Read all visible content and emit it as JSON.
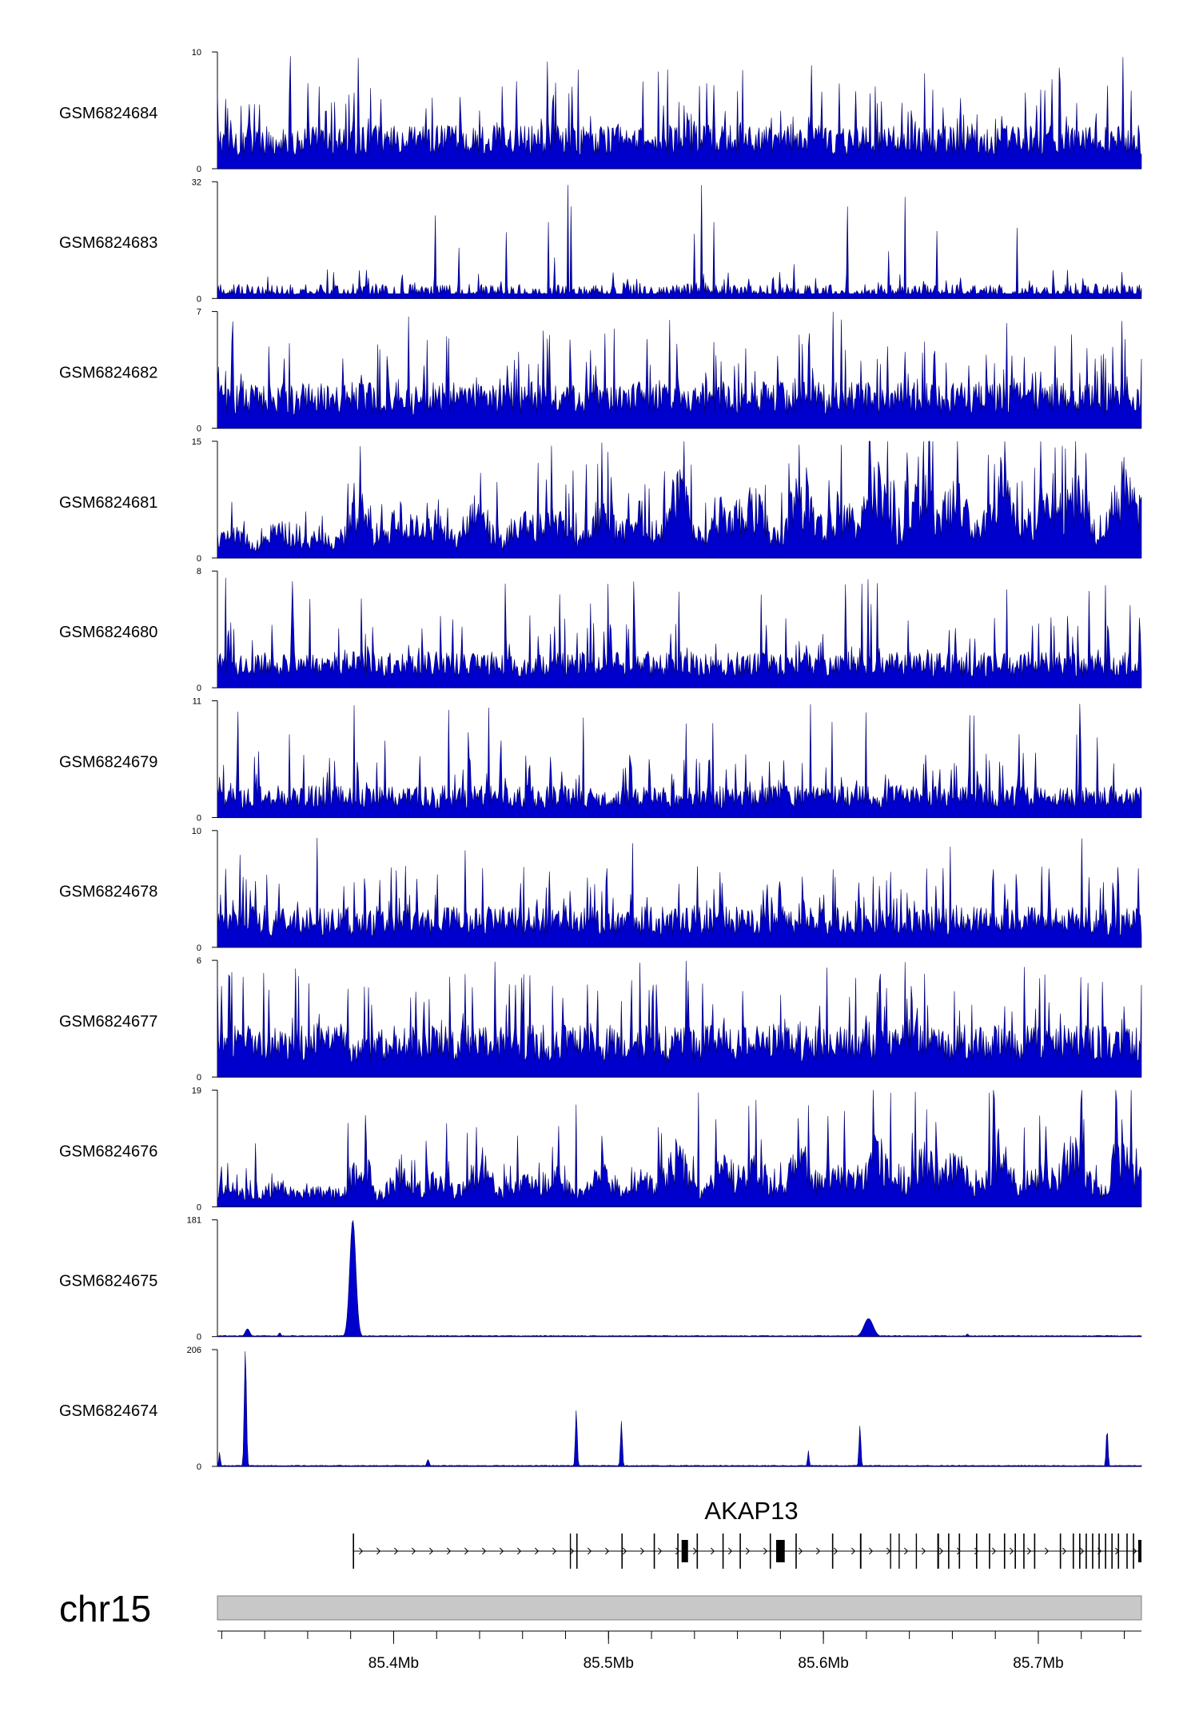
{
  "chart_data": {
    "type": "area",
    "chromosome": "chr15",
    "gene": "AKAP13",
    "xlim": [
      85318000,
      85748000
    ],
    "x_ticks": [
      85400000,
      85500000,
      85600000,
      85700000
    ],
    "x_tick_labels": [
      "85.4Mb",
      "85.5Mb",
      "85.6Mb",
      "85.7Mb"
    ],
    "colors": {
      "signal": "#0000cc",
      "signal_dark": "#00006a",
      "ideogram": "#c8c8c8",
      "gene": "#000000"
    },
    "tracks": [
      {
        "name": "GSM6824684",
        "ylim": [
          0,
          10
        ],
        "ymax_label": "10",
        "ymin_label": "0",
        "profile": "noisy",
        "level": 0.3,
        "trend": 0.0
      },
      {
        "name": "GSM6824683",
        "ylim": [
          0,
          32
        ],
        "ymax_label": "32",
        "ymin_label": "0",
        "profile": "sparse",
        "level": 0.1,
        "trend": 0.0
      },
      {
        "name": "GSM6824682",
        "ylim": [
          0,
          7
        ],
        "ymax_label": "7",
        "ymin_label": "0",
        "profile": "noisy",
        "level": 0.32,
        "trend": 0.0
      },
      {
        "name": "GSM6824681",
        "ylim": [
          0,
          15
        ],
        "ymax_label": "15",
        "ymin_label": "0",
        "profile": "trend",
        "level": 0.1,
        "trend": 0.5
      },
      {
        "name": "GSM6824680",
        "ylim": [
          0,
          8
        ],
        "ymax_label": "8",
        "ymin_label": "0",
        "profile": "noisy",
        "level": 0.25,
        "trend": 0.0
      },
      {
        "name": "GSM6824679",
        "ylim": [
          0,
          11
        ],
        "ymax_label": "11",
        "ymin_label": "0",
        "profile": "noisy",
        "level": 0.22,
        "trend": 0.0
      },
      {
        "name": "GSM6824678",
        "ylim": [
          0,
          10
        ],
        "ymax_label": "10",
        "ymin_label": "0",
        "profile": "noisy",
        "level": 0.28,
        "trend": 0.0
      },
      {
        "name": "GSM6824677",
        "ylim": [
          0,
          6
        ],
        "ymax_label": "6",
        "ymin_label": "0",
        "profile": "noisy",
        "level": 0.36,
        "trend": 0.0
      },
      {
        "name": "GSM6824676",
        "ylim": [
          0,
          19
        ],
        "ymax_label": "19",
        "ymin_label": "0",
        "profile": "trend",
        "level": 0.08,
        "trend": 0.35
      },
      {
        "name": "GSM6824675",
        "ylim": [
          0,
          181
        ],
        "ymax_label": "181",
        "ymin_label": "0",
        "profile": "peaks",
        "peaks": [
          {
            "x": 85381000,
            "y": 181,
            "width": 2000
          },
          {
            "x": 85332000,
            "y": 12,
            "width": 1500
          },
          {
            "x": 85347000,
            "y": 6,
            "width": 800
          },
          {
            "x": 85621000,
            "y": 28,
            "width": 3000
          },
          {
            "x": 85667000,
            "y": 4,
            "width": 800
          }
        ]
      },
      {
        "name": "GSM6824674",
        "ylim": [
          0,
          206
        ],
        "ymax_label": "206",
        "ymin_label": "0",
        "profile": "peaks",
        "peaks": [
          {
            "x": 85331000,
            "y": 206,
            "width": 700
          },
          {
            "x": 85319000,
            "y": 25,
            "width": 500
          },
          {
            "x": 85416000,
            "y": 12,
            "width": 800
          },
          {
            "x": 85485000,
            "y": 100,
            "width": 600
          },
          {
            "x": 85506000,
            "y": 80,
            "width": 600
          },
          {
            "x": 85593000,
            "y": 28,
            "width": 500
          },
          {
            "x": 85617000,
            "y": 72,
            "width": 600
          },
          {
            "x": 85732000,
            "y": 66,
            "width": 600
          }
        ]
      }
    ],
    "gene_model": {
      "name": "AKAP13",
      "start": 85381000,
      "end": 85748000,
      "strand": "+",
      "exons": [
        {
          "start": 85381000,
          "end": 85381600,
          "thick": false
        },
        {
          "start": 85482000,
          "end": 85482500,
          "thick": false
        },
        {
          "start": 85485000,
          "end": 85485600,
          "thick": false
        },
        {
          "start": 85506000,
          "end": 85506600,
          "thick": false
        },
        {
          "start": 85521000,
          "end": 85521600,
          "thick": false
        },
        {
          "start": 85532000,
          "end": 85532600,
          "thick": false
        },
        {
          "start": 85534000,
          "end": 85537000,
          "thick": true
        },
        {
          "start": 85541000,
          "end": 85541600,
          "thick": false
        },
        {
          "start": 85553000,
          "end": 85553600,
          "thick": false
        },
        {
          "start": 85561000,
          "end": 85561600,
          "thick": false
        },
        {
          "start": 85575000,
          "end": 85575600,
          "thick": false
        },
        {
          "start": 85578000,
          "end": 85582000,
          "thick": true
        },
        {
          "start": 85587000,
          "end": 85587600,
          "thick": false
        },
        {
          "start": 85604000,
          "end": 85604600,
          "thick": false
        },
        {
          "start": 85617000,
          "end": 85617700,
          "thick": false
        },
        {
          "start": 85631000,
          "end": 85631500,
          "thick": false
        },
        {
          "start": 85635000,
          "end": 85635500,
          "thick": false
        },
        {
          "start": 85643000,
          "end": 85643500,
          "thick": false
        },
        {
          "start": 85653000,
          "end": 85653800,
          "thick": false
        },
        {
          "start": 85658000,
          "end": 85658600,
          "thick": false
        },
        {
          "start": 85663000,
          "end": 85663600,
          "thick": false
        },
        {
          "start": 85671000,
          "end": 85671600,
          "thick": false
        },
        {
          "start": 85677000,
          "end": 85677600,
          "thick": false
        },
        {
          "start": 85684000,
          "end": 85684600,
          "thick": false
        },
        {
          "start": 85689000,
          "end": 85689600,
          "thick": false
        },
        {
          "start": 85693000,
          "end": 85693600,
          "thick": false
        },
        {
          "start": 85698000,
          "end": 85698600,
          "thick": false
        },
        {
          "start": 85710000,
          "end": 85710600,
          "thick": false
        },
        {
          "start": 85716000,
          "end": 85716600,
          "thick": false
        },
        {
          "start": 85719000,
          "end": 85719600,
          "thick": false
        },
        {
          "start": 85722000,
          "end": 85722600,
          "thick": false
        },
        {
          "start": 85725000,
          "end": 85725600,
          "thick": false
        },
        {
          "start": 85728000,
          "end": 85728600,
          "thick": false
        },
        {
          "start": 85731000,
          "end": 85731600,
          "thick": false
        },
        {
          "start": 85734000,
          "end": 85734600,
          "thick": false
        },
        {
          "start": 85737000,
          "end": 85737600,
          "thick": false
        },
        {
          "start": 85741000,
          "end": 85741600,
          "thick": false
        },
        {
          "start": 85744000,
          "end": 85744600,
          "thick": false
        },
        {
          "start": 85746500,
          "end": 85748000,
          "thick": true
        }
      ]
    }
  }
}
